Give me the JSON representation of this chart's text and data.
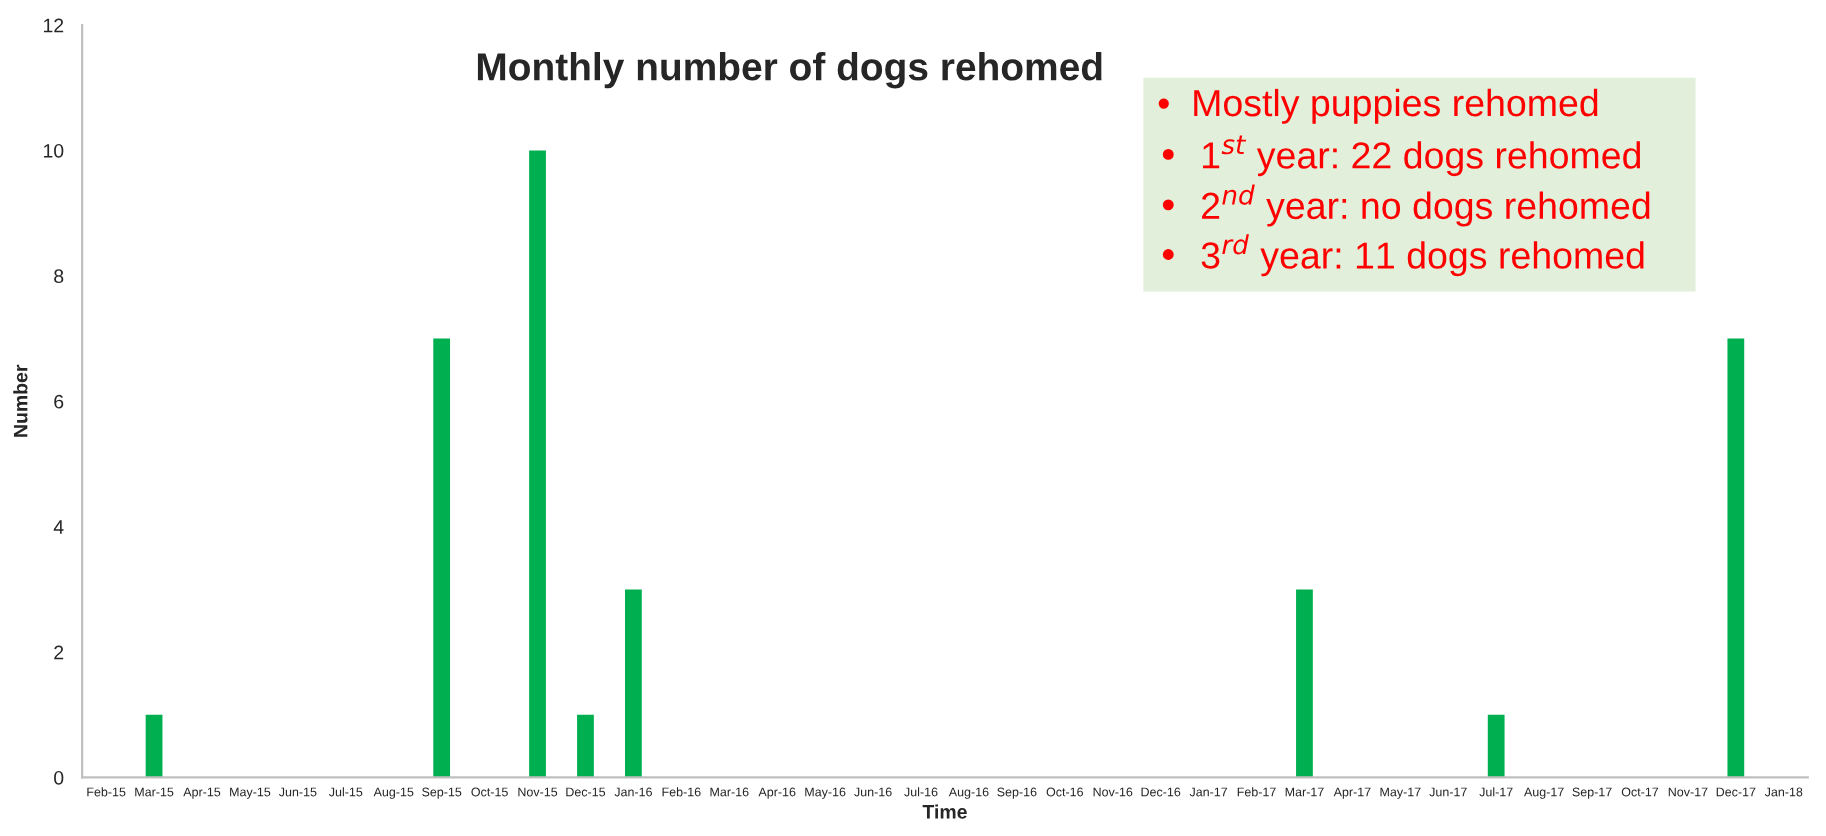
{
  "chart_data": {
    "type": "bar",
    "title": "Monthly number of dogs rehomed",
    "xlabel": "Time",
    "ylabel": "Number",
    "categories": [
      "Feb-15",
      "Mar-15",
      "Apr-15",
      "May-15",
      "Jun-15",
      "Jul-15",
      "Aug-15",
      "Sep-15",
      "Oct-15",
      "Nov-15",
      "Dec-15",
      "Jan-16",
      "Feb-16",
      "Mar-16",
      "Apr-16",
      "May-16",
      "Jun-16",
      "Jul-16",
      "Aug-16",
      "Sep-16",
      "Oct-16",
      "Nov-16",
      "Dec-16",
      "Jan-17",
      "Feb-17",
      "Mar-17",
      "Apr-17",
      "May-17",
      "Jun-17",
      "Jul-17",
      "Aug-17",
      "Sep-17",
      "Oct-17",
      "Nov-17",
      "Dec-17",
      "Jan-18"
    ],
    "values": [
      0,
      1,
      0,
      0,
      0,
      0,
      0,
      7,
      0,
      10,
      1,
      3,
      0,
      0,
      0,
      0,
      0,
      0,
      0,
      0,
      0,
      0,
      0,
      0,
      0,
      3,
      0,
      0,
      0,
      1,
      0,
      0,
      0,
      0,
      7,
      0
    ],
    "color": "#00b050",
    "ylim": [
      0,
      12
    ],
    "yticks": [
      0,
      2,
      4,
      6,
      8,
      10,
      12
    ],
    "grid": false,
    "legend": false,
    "annotations": [
      "•  Mostly puppies rehomed",
      "•  1$^{st}$ year: 22 dogs rehomed",
      "•  2$^{nd}$ year: no dogs rehomed",
      "•  3$^{rd}$ year: 11 dogs rehomed"
    ]
  }
}
